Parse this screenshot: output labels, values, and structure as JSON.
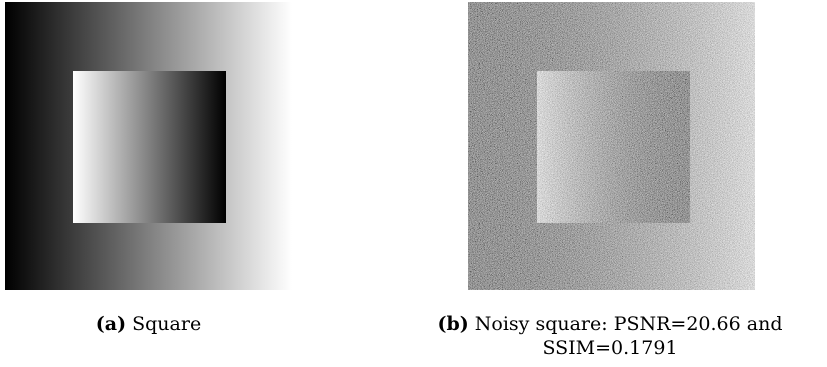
{
  "subfigures": [
    {
      "tag": "(a)",
      "caption": "Square"
    },
    {
      "tag": "(b)",
      "caption_line1": "Noisy square: PSNR=20.66 and",
      "caption_line2": "SSIM=0.1791"
    }
  ]
}
